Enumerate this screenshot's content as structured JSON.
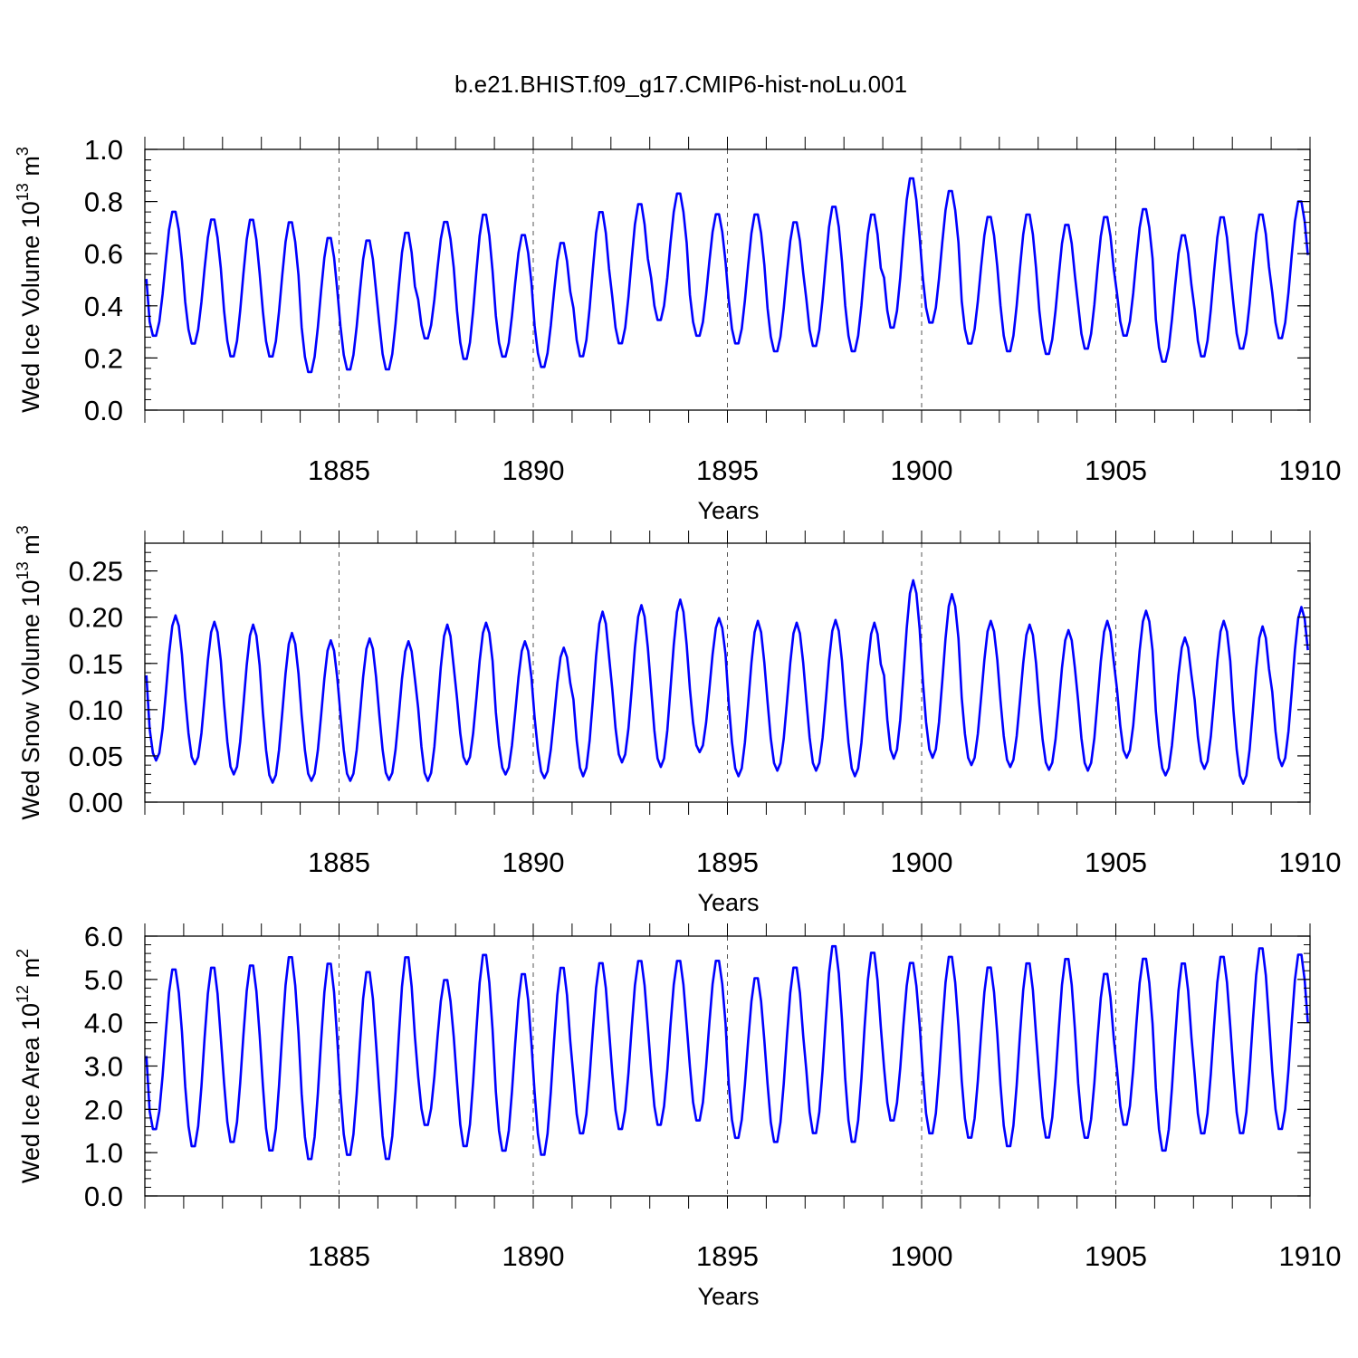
{
  "title": "b.e21.BHIST.f09_g17.CMIP6-hist-noLu.001",
  "colors": {
    "series": "#0000ff",
    "axis": "#000000",
    "reference": "#555555"
  },
  "chart_data": [
    {
      "type": "line",
      "ylabel": {
        "main": "Wed Ice Volume 10",
        "exp": "13",
        "unit": " m",
        "unit_exp": "3"
      },
      "xlabel": "Years",
      "xlim": [
        1880,
        1910
      ],
      "ylim": [
        0,
        1.0
      ],
      "y_ticks": [
        "0.0",
        "0.2",
        "0.4",
        "0.6",
        "0.8",
        "1.0"
      ],
      "y_tick_values": [
        0,
        0.2,
        0.4,
        0.6,
        0.8,
        1.0
      ],
      "x_ticks": [
        "1885",
        "1890",
        "1895",
        "1900",
        "1905",
        "1910"
      ],
      "x_tick_values": [
        1885,
        1890,
        1895,
        1900,
        1905,
        1910
      ],
      "reference_lines_x": [
        1885,
        1890,
        1895,
        1900,
        1905
      ],
      "series": [
        {
          "name": "Wed Ice Volume",
          "start": 1880.04,
          "step": 0.0833,
          "max_month": 8.5,
          "annual_min": [
            0.28,
            0.25,
            0.2,
            0.2,
            0.14,
            0.15,
            0.15,
            0.27,
            0.19,
            0.2,
            0.16,
            0.2,
            0.25,
            0.34,
            0.28,
            0.25,
            0.22,
            0.24,
            0.22,
            0.31,
            0.33,
            0.25,
            0.22,
            0.21,
            0.23,
            0.28,
            0.18,
            0.2,
            0.23,
            0.27
          ],
          "annual_max": [
            0.77,
            0.74,
            0.74,
            0.73,
            0.67,
            0.66,
            0.69,
            0.73,
            0.76,
            0.68,
            0.65,
            0.77,
            0.8,
            0.84,
            0.76,
            0.76,
            0.73,
            0.79,
            0.76,
            0.9,
            0.85,
            0.75,
            0.76,
            0.72,
            0.75,
            0.78,
            0.68,
            0.75,
            0.76,
            0.81
          ]
        }
      ]
    },
    {
      "type": "line",
      "ylabel": {
        "main": "Wed Snow Volume 10",
        "exp": "13",
        "unit": " m",
        "unit_exp": "3"
      },
      "xlabel": "Years",
      "xlim": [
        1880,
        1910
      ],
      "ylim": [
        0,
        0.28
      ],
      "y_ticks": [
        "0.00",
        "0.05",
        "0.10",
        "0.15",
        "0.20",
        "0.25"
      ],
      "y_tick_values": [
        0,
        0.05,
        0.1,
        0.15,
        0.2,
        0.25
      ],
      "x_ticks": [
        "1885",
        "1890",
        "1895",
        "1900",
        "1905",
        "1910"
      ],
      "x_tick_values": [
        1885,
        1890,
        1895,
        1900,
        1905,
        1910
      ],
      "reference_lines_x": [
        1885,
        1890,
        1895,
        1900,
        1905
      ],
      "series": [
        {
          "name": "Wed Snow Volume",
          "start": 1880.04,
          "step": 0.0833,
          "max_month": 9,
          "annual_min": [
            0.045,
            0.041,
            0.03,
            0.021,
            0.023,
            0.023,
            0.024,
            0.023,
            0.041,
            0.03,
            0.026,
            0.028,
            0.043,
            0.038,
            0.054,
            0.028,
            0.034,
            0.034,
            0.028,
            0.047,
            0.048,
            0.04,
            0.038,
            0.035,
            0.034,
            0.048,
            0.029,
            0.036,
            0.02,
            0.039
          ],
          "annual_max": [
            0.202,
            0.195,
            0.192,
            0.183,
            0.175,
            0.177,
            0.174,
            0.192,
            0.194,
            0.174,
            0.167,
            0.206,
            0.213,
            0.219,
            0.199,
            0.196,
            0.194,
            0.197,
            0.194,
            0.24,
            0.225,
            0.196,
            0.192,
            0.186,
            0.196,
            0.207,
            0.178,
            0.196,
            0.19,
            0.211
          ]
        }
      ]
    },
    {
      "type": "line",
      "ylabel": {
        "main": "Wed Ice Area 10",
        "exp": "12",
        "unit": " m",
        "unit_exp": "2"
      },
      "xlabel": "Years",
      "xlim": [
        1880,
        1910
      ],
      "ylim": [
        0,
        6.0
      ],
      "y_ticks": [
        "0.0",
        "1.0",
        "2.0",
        "3.0",
        "4.0",
        "5.0",
        "6.0"
      ],
      "y_tick_values": [
        0,
        1,
        2,
        3,
        4,
        5,
        6
      ],
      "x_ticks": [
        "1885",
        "1890",
        "1895",
        "1900",
        "1905",
        "1910"
      ],
      "x_tick_values": [
        1885,
        1890,
        1895,
        1900,
        1905,
        1910
      ],
      "reference_lines_x": [
        1885,
        1890,
        1895,
        1900,
        1905
      ],
      "series": [
        {
          "name": "Wed Ice Area",
          "start": 1880.04,
          "step": 0.0833,
          "max_month": 8.5,
          "annual_min": [
            1.5,
            1.1,
            1.2,
            1.0,
            0.8,
            0.9,
            0.8,
            1.6,
            1.1,
            1.0,
            0.9,
            1.4,
            1.5,
            1.6,
            1.7,
            1.3,
            1.2,
            1.4,
            1.2,
            1.7,
            1.4,
            1.3,
            1.1,
            1.3,
            1.3,
            1.6,
            1.0,
            1.4,
            1.4,
            1.5
          ],
          "annual_max": [
            5.3,
            5.35,
            5.4,
            5.6,
            5.45,
            5.25,
            5.6,
            5.05,
            5.65,
            5.2,
            5.35,
            5.45,
            5.5,
            5.5,
            5.5,
            5.1,
            5.35,
            5.85,
            5.7,
            5.45,
            5.6,
            5.35,
            5.45,
            5.55,
            5.2,
            5.55,
            5.45,
            5.6,
            5.8,
            5.65
          ]
        }
      ]
    }
  ]
}
